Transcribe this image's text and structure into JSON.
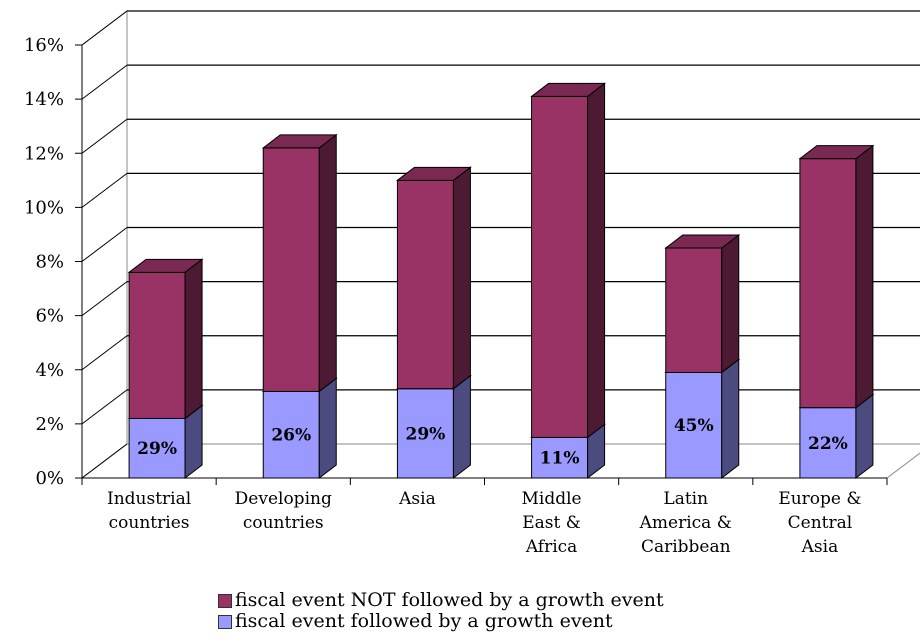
{
  "chart_data": {
    "type": "bar",
    "stacked": true,
    "three_d": true,
    "categories": [
      [
        "Industrial",
        "countries"
      ],
      [
        "Developing",
        "countries"
      ],
      [
        "Asia"
      ],
      [
        "Middle",
        "East &",
        "Africa"
      ],
      [
        "Latin",
        "America &",
        "Caribbean"
      ],
      [
        "Europe &",
        "Central",
        "Asia"
      ]
    ],
    "series": [
      {
        "name": "fiscal event followed by a growth event",
        "values": [
          2.2,
          3.2,
          3.3,
          1.5,
          3.9,
          2.6
        ],
        "color": "#9999ff",
        "side_color": "#4b4b80",
        "top_color": "#7a7acc"
      },
      {
        "name": "fiscal event NOT followed by a growth event",
        "values": [
          5.4,
          9.0,
          7.7,
          12.6,
          4.6,
          9.2
        ],
        "color": "#993366",
        "side_color": "#4d1a33",
        "top_color": "#7a2952"
      }
    ],
    "data_labels": [
      "29%",
      "26%",
      "29%",
      "11%",
      "45%",
      "22%"
    ],
    "yticks": [
      "0%",
      "2%",
      "4%",
      "6%",
      "8%",
      "10%",
      "12%",
      "14%",
      "16%"
    ],
    "ylim": [
      0,
      16
    ],
    "grid": true,
    "legend_position": "bottom"
  },
  "legend": {
    "items": [
      {
        "label": "fiscal event NOT followed by a growth event",
        "color": "#993366"
      },
      {
        "label": "fiscal event followed by a growth event",
        "color": "#9999ff"
      }
    ]
  }
}
